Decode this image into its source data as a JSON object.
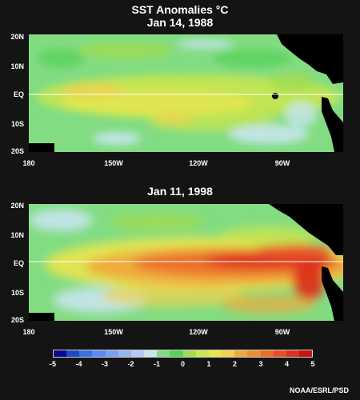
{
  "title": "SST Anomalies °C",
  "panels": [
    {
      "date": "Jan 14, 1988",
      "lat_labels": [
        "20N",
        "10N",
        "EQ",
        "10S",
        "20S"
      ],
      "lon_labels": [
        "180",
        "150W",
        "120W",
        "90W"
      ]
    },
    {
      "date": "Jan 11, 1998",
      "lat_labels": [
        "20N",
        "10N",
        "EQ",
        "10S",
        "20S"
      ],
      "lon_labels": [
        "180",
        "150W",
        "120W",
        "90W"
      ]
    }
  ],
  "colorbar": {
    "labels": [
      "-5",
      "-4",
      "-3",
      "-2",
      "-1",
      "0",
      "1",
      "2",
      "3",
      "4",
      "5"
    ],
    "colors": [
      "#0a0a8c",
      "#1e46c8",
      "#3c6ee6",
      "#5a8cf0",
      "#78a0f0",
      "#96b4f0",
      "#b4c8f0",
      "#c8e6f0",
      "#82dc82",
      "#5ad25a",
      "#a0dc50",
      "#c8e650",
      "#e6e650",
      "#f0d250",
      "#f0aa3c",
      "#f08c32",
      "#eb6e28",
      "#e65028",
      "#dc321e",
      "#c81414"
    ]
  },
  "credit": "NOAA/ESRL/PSD",
  "colors": {
    "background": "#141414",
    "land": "#000000",
    "equator_line": "#ffffff",
    "neutral": "#82dc82",
    "warm": "#dc321e"
  }
}
